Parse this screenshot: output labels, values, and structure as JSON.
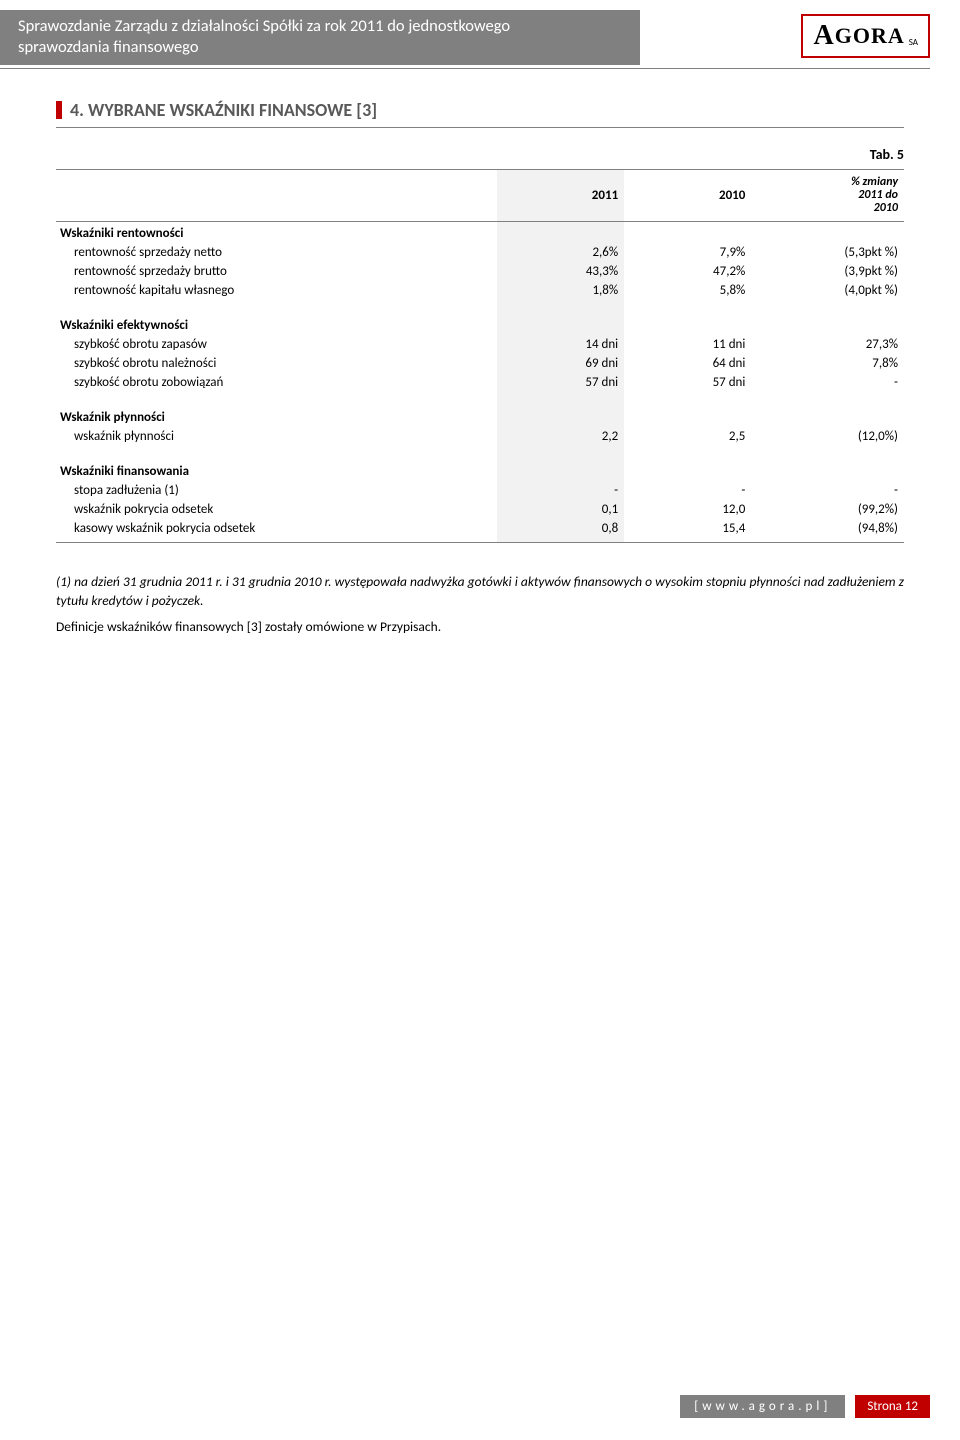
{
  "header": {
    "title_line1": "Sprawozdanie Zarządu z działalności Spółki za rok 2011 do jednostkowego",
    "title_line2": "sprawozdania finansowego",
    "logo_a": "A",
    "logo_rest": "GORA",
    "logo_sa": "SA"
  },
  "section": {
    "heading": "4. WYBRANE WSKAŹNIKI FINANSOWE [3]",
    "tab_label": "Tab. 5"
  },
  "table": {
    "headers": {
      "label": "",
      "c2011": "2011",
      "c2010": "2010",
      "chg_l1": "% zmiany",
      "chg_l2": "2011 do",
      "chg_l3": "2010"
    },
    "groups": [
      {
        "title": "Wskaźniki rentowności",
        "rows": [
          {
            "label": "rentowność sprzedaży netto",
            "c2011": "2,6%",
            "c2010": "7,9%",
            "chg": "(5,3pkt %)"
          },
          {
            "label": "rentowność sprzedaży brutto",
            "c2011": "43,3%",
            "c2010": "47,2%",
            "chg": "(3,9pkt %)"
          },
          {
            "label": "rentowność kapitału własnego",
            "c2011": "1,8%",
            "c2010": "5,8%",
            "chg": "(4,0pkt %)"
          }
        ]
      },
      {
        "title": "Wskaźniki efektywności",
        "rows": [
          {
            "label": "szybkość obrotu zapasów",
            "c2011": "14 dni",
            "c2010": "11 dni",
            "chg": "27,3%"
          },
          {
            "label": "szybkość obrotu należności",
            "c2011": "69 dni",
            "c2010": "64 dni",
            "chg": "7,8%"
          },
          {
            "label": "szybkość obrotu zobowiązań",
            "c2011": "57 dni",
            "c2010": "57 dni",
            "chg": "-"
          }
        ]
      },
      {
        "title": "Wskaźnik płynności",
        "rows": [
          {
            "label": "wskaźnik płynności",
            "c2011": "2,2",
            "c2010": "2,5",
            "chg": "(12,0%)"
          }
        ]
      },
      {
        "title": "Wskaźniki finansowania",
        "rows": [
          {
            "label": "stopa zadłużenia (1)",
            "c2011": "-",
            "c2010": "-",
            "chg": "-"
          },
          {
            "label": "wskaźnik pokrycia odsetek",
            "c2011": "0,1",
            "c2010": "12,0",
            "chg": "(99,2%)"
          },
          {
            "label": "kasowy wskaźnik pokrycia odsetek",
            "c2011": "0,8",
            "c2010": "15,4",
            "chg": "(94,8%)"
          }
        ]
      }
    ]
  },
  "notes": {
    "p1": "(1) na dzień 31 grudnia 2011 r. i 31 grudnia 2010 r. występowała nadwyżka gotówki i aktywów finansowych o wysokim stopniu płynności nad zadłużeniem z tytułu kredytów i pożyczek.",
    "p2": "Definicje wskaźników finansowych [3] zostały omówione w Przypisach."
  },
  "footer": {
    "url": "[www.agora.pl]",
    "page": "Strona 12"
  }
}
